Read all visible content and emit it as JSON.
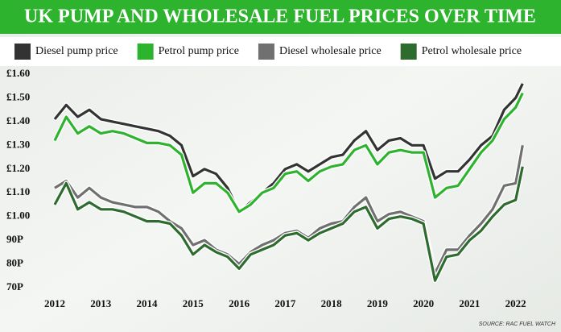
{
  "chart_data": {
    "type": "line",
    "title": "UK PUMP AND WHOLESALE FUEL PRICES OVER TIME",
    "source": "SOURCE: RAC FUEL WATCH",
    "x": [
      2012,
      2012.25,
      2012.5,
      2012.75,
      2013,
      2013.25,
      2013.5,
      2013.75,
      2014,
      2014.25,
      2014.5,
      2014.75,
      2015,
      2015.25,
      2015.5,
      2015.75,
      2016,
      2016.25,
      2016.5,
      2016.75,
      2017,
      2017.25,
      2017.5,
      2017.75,
      2018,
      2018.25,
      2018.5,
      2018.75,
      2019,
      2019.25,
      2019.5,
      2019.75,
      2020,
      2020.25,
      2020.5,
      2020.75,
      2021,
      2021.25,
      2021.5,
      2021.75,
      2022,
      2022.15
    ],
    "series": [
      {
        "name": "Diesel pump price",
        "color": "#333333",
        "values": [
          1.41,
          1.47,
          1.42,
          1.45,
          1.41,
          1.4,
          1.39,
          1.38,
          1.37,
          1.36,
          1.34,
          1.3,
          1.17,
          1.2,
          1.18,
          1.12,
          1.02,
          1.06,
          1.1,
          1.14,
          1.2,
          1.22,
          1.19,
          1.22,
          1.25,
          1.26,
          1.32,
          1.36,
          1.28,
          1.32,
          1.33,
          1.3,
          1.3,
          1.16,
          1.19,
          1.19,
          1.24,
          1.3,
          1.34,
          1.45,
          1.5,
          1.56
        ]
      },
      {
        "name": "Petrol pump price",
        "color": "#2db32d",
        "values": [
          1.32,
          1.42,
          1.35,
          1.38,
          1.35,
          1.36,
          1.35,
          1.33,
          1.31,
          1.31,
          1.3,
          1.26,
          1.1,
          1.14,
          1.14,
          1.1,
          1.02,
          1.05,
          1.1,
          1.12,
          1.18,
          1.19,
          1.15,
          1.19,
          1.21,
          1.22,
          1.28,
          1.3,
          1.22,
          1.27,
          1.28,
          1.27,
          1.27,
          1.08,
          1.12,
          1.13,
          1.2,
          1.27,
          1.32,
          1.41,
          1.46,
          1.52
        ]
      },
      {
        "name": "Diesel wholesale price",
        "color": "#707070",
        "values": [
          1.12,
          1.15,
          1.08,
          1.12,
          1.08,
          1.06,
          1.05,
          1.04,
          1.04,
          1.02,
          0.98,
          0.95,
          0.88,
          0.9,
          0.86,
          0.84,
          0.8,
          0.85,
          0.88,
          0.9,
          0.93,
          0.94,
          0.91,
          0.95,
          0.97,
          0.98,
          1.04,
          1.08,
          0.98,
          1.01,
          1.02,
          1.0,
          0.98,
          0.76,
          0.86,
          0.86,
          0.92,
          0.97,
          1.03,
          1.13,
          1.14,
          1.3
        ]
      },
      {
        "name": "Petrol wholesale price",
        "color": "#2e6b2e",
        "values": [
          1.05,
          1.14,
          1.03,
          1.06,
          1.03,
          1.03,
          1.02,
          1.0,
          0.98,
          0.98,
          0.97,
          0.92,
          0.84,
          0.88,
          0.85,
          0.83,
          0.78,
          0.84,
          0.86,
          0.88,
          0.92,
          0.93,
          0.9,
          0.93,
          0.95,
          0.97,
          1.02,
          1.04,
          0.95,
          0.99,
          1.0,
          0.99,
          0.97,
          0.73,
          0.83,
          0.84,
          0.9,
          0.94,
          1.0,
          1.05,
          1.07,
          1.21
        ]
      }
    ],
    "xlim": [
      2012,
      2022.25
    ],
    "xticks": [
      2012,
      2013,
      2014,
      2015,
      2016,
      2017,
      2018,
      2019,
      2020,
      2021,
      2022
    ],
    "ylim": [
      0.7,
      1.6
    ],
    "yticks": [
      {
        "value": 1.6,
        "label": "£1.60"
      },
      {
        "value": 1.5,
        "label": "£1.50"
      },
      {
        "value": 1.4,
        "label": "£1.40"
      },
      {
        "value": 1.3,
        "label": "£1.30"
      },
      {
        "value": 1.2,
        "label": "£1.20"
      },
      {
        "value": 1.1,
        "label": "£1.10"
      },
      {
        "value": 1.0,
        "label": "£1.00"
      },
      {
        "value": 0.9,
        "label": "90P"
      },
      {
        "value": 0.8,
        "label": "80P"
      },
      {
        "value": 0.7,
        "label": "70P"
      }
    ],
    "grid": false
  }
}
